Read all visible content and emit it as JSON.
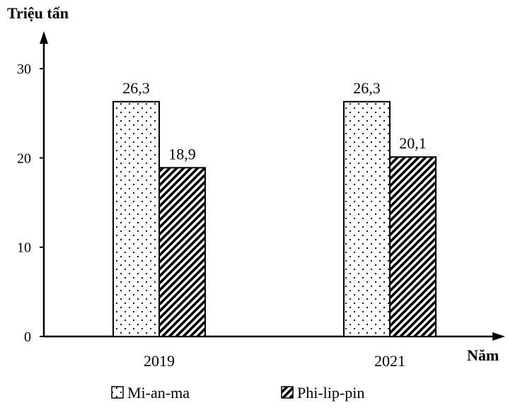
{
  "chart_data": {
    "type": "bar",
    "ylabel": "Triệu tấn",
    "xlabel": "Năm",
    "categories": [
      "2019",
      "2021"
    ],
    "series": [
      {
        "name": "Mi-an-ma",
        "values": [
          26.3,
          26.3
        ],
        "value_labels": [
          "26,3",
          "26,3"
        ],
        "pattern": "dots"
      },
      {
        "name": "Phi-lip-pin",
        "values": [
          18.9,
          20.1
        ],
        "value_labels": [
          "18,9",
          "20,1"
        ],
        "pattern": "diagonal-hatch"
      }
    ],
    "yticks": [
      "0",
      "10",
      "20",
      "30"
    ],
    "ylim": [
      0,
      30
    ],
    "grid": false,
    "legend_position": "bottom"
  }
}
